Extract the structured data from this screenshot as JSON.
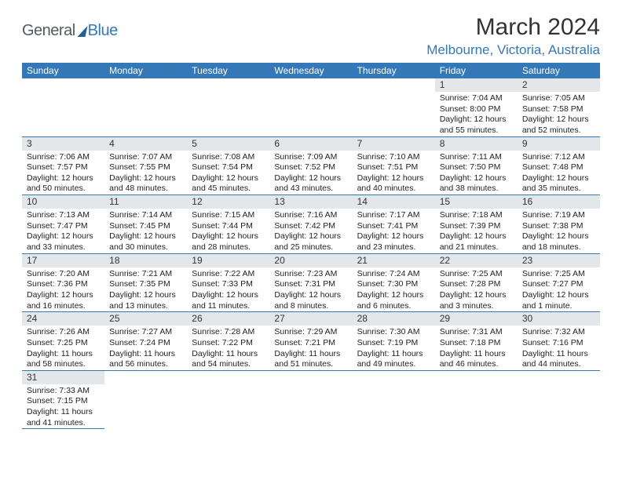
{
  "logo": {
    "part1": "General",
    "part2": "Blue"
  },
  "title": "March 2024",
  "location": "Melbourne, Victoria, Australia",
  "colors": {
    "accent": "#3478b8",
    "header_bar": "#e4e7ea",
    "text": "#222222"
  },
  "day_headers": [
    "Sunday",
    "Monday",
    "Tuesday",
    "Wednesday",
    "Thursday",
    "Friday",
    "Saturday"
  ],
  "weeks": [
    [
      null,
      null,
      null,
      null,
      null,
      {
        "n": "1",
        "sr": "7:04 AM",
        "ss": "8:00 PM",
        "dl": "12 hours and 55 minutes."
      },
      {
        "n": "2",
        "sr": "7:05 AM",
        "ss": "7:58 PM",
        "dl": "12 hours and 52 minutes."
      }
    ],
    [
      {
        "n": "3",
        "sr": "7:06 AM",
        "ss": "7:57 PM",
        "dl": "12 hours and 50 minutes."
      },
      {
        "n": "4",
        "sr": "7:07 AM",
        "ss": "7:55 PM",
        "dl": "12 hours and 48 minutes."
      },
      {
        "n": "5",
        "sr": "7:08 AM",
        "ss": "7:54 PM",
        "dl": "12 hours and 45 minutes."
      },
      {
        "n": "6",
        "sr": "7:09 AM",
        "ss": "7:52 PM",
        "dl": "12 hours and 43 minutes."
      },
      {
        "n": "7",
        "sr": "7:10 AM",
        "ss": "7:51 PM",
        "dl": "12 hours and 40 minutes."
      },
      {
        "n": "8",
        "sr": "7:11 AM",
        "ss": "7:50 PM",
        "dl": "12 hours and 38 minutes."
      },
      {
        "n": "9",
        "sr": "7:12 AM",
        "ss": "7:48 PM",
        "dl": "12 hours and 35 minutes."
      }
    ],
    [
      {
        "n": "10",
        "sr": "7:13 AM",
        "ss": "7:47 PM",
        "dl": "12 hours and 33 minutes."
      },
      {
        "n": "11",
        "sr": "7:14 AM",
        "ss": "7:45 PM",
        "dl": "12 hours and 30 minutes."
      },
      {
        "n": "12",
        "sr": "7:15 AM",
        "ss": "7:44 PM",
        "dl": "12 hours and 28 minutes."
      },
      {
        "n": "13",
        "sr": "7:16 AM",
        "ss": "7:42 PM",
        "dl": "12 hours and 25 minutes."
      },
      {
        "n": "14",
        "sr": "7:17 AM",
        "ss": "7:41 PM",
        "dl": "12 hours and 23 minutes."
      },
      {
        "n": "15",
        "sr": "7:18 AM",
        "ss": "7:39 PM",
        "dl": "12 hours and 21 minutes."
      },
      {
        "n": "16",
        "sr": "7:19 AM",
        "ss": "7:38 PM",
        "dl": "12 hours and 18 minutes."
      }
    ],
    [
      {
        "n": "17",
        "sr": "7:20 AM",
        "ss": "7:36 PM",
        "dl": "12 hours and 16 minutes."
      },
      {
        "n": "18",
        "sr": "7:21 AM",
        "ss": "7:35 PM",
        "dl": "12 hours and 13 minutes."
      },
      {
        "n": "19",
        "sr": "7:22 AM",
        "ss": "7:33 PM",
        "dl": "12 hours and 11 minutes."
      },
      {
        "n": "20",
        "sr": "7:23 AM",
        "ss": "7:31 PM",
        "dl": "12 hours and 8 minutes."
      },
      {
        "n": "21",
        "sr": "7:24 AM",
        "ss": "7:30 PM",
        "dl": "12 hours and 6 minutes."
      },
      {
        "n": "22",
        "sr": "7:25 AM",
        "ss": "7:28 PM",
        "dl": "12 hours and 3 minutes."
      },
      {
        "n": "23",
        "sr": "7:25 AM",
        "ss": "7:27 PM",
        "dl": "12 hours and 1 minute."
      }
    ],
    [
      {
        "n": "24",
        "sr": "7:26 AM",
        "ss": "7:25 PM",
        "dl": "11 hours and 58 minutes."
      },
      {
        "n": "25",
        "sr": "7:27 AM",
        "ss": "7:24 PM",
        "dl": "11 hours and 56 minutes."
      },
      {
        "n": "26",
        "sr": "7:28 AM",
        "ss": "7:22 PM",
        "dl": "11 hours and 54 minutes."
      },
      {
        "n": "27",
        "sr": "7:29 AM",
        "ss": "7:21 PM",
        "dl": "11 hours and 51 minutes."
      },
      {
        "n": "28",
        "sr": "7:30 AM",
        "ss": "7:19 PM",
        "dl": "11 hours and 49 minutes."
      },
      {
        "n": "29",
        "sr": "7:31 AM",
        "ss": "7:18 PM",
        "dl": "11 hours and 46 minutes."
      },
      {
        "n": "30",
        "sr": "7:32 AM",
        "ss": "7:16 PM",
        "dl": "11 hours and 44 minutes."
      }
    ],
    [
      {
        "n": "31",
        "sr": "7:33 AM",
        "ss": "7:15 PM",
        "dl": "11 hours and 41 minutes."
      },
      null,
      null,
      null,
      null,
      null,
      null
    ]
  ],
  "labels": {
    "sunrise": "Sunrise:",
    "sunset": "Sunset:",
    "daylight": "Daylight:"
  }
}
